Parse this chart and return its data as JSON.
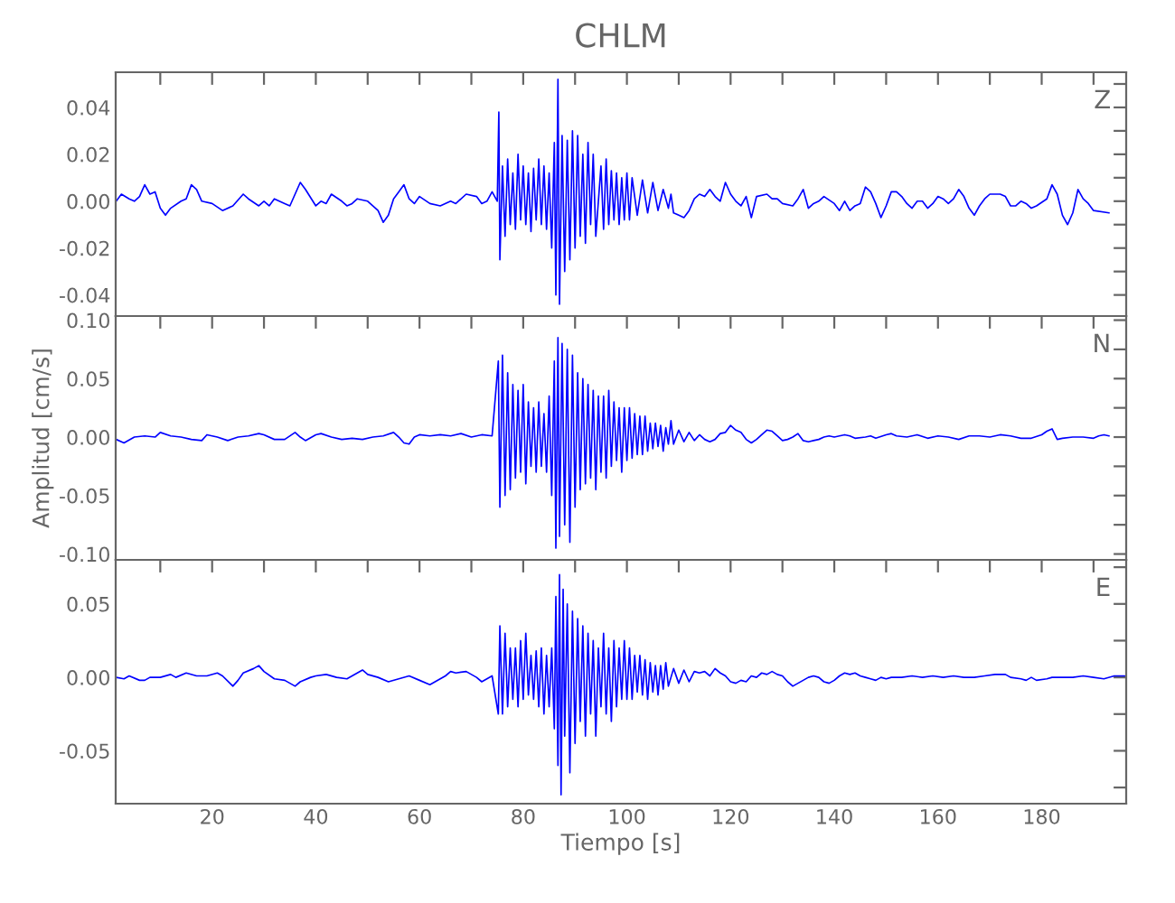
{
  "chart_data": [
    {
      "type": "line",
      "title": "CHLM",
      "annotations": [
        "Z"
      ],
      "tick_labels": "y",
      "xlim": [
        1.4,
        196.3
      ],
      "ylim": [
        -0.049,
        0.055
      ],
      "xticks": [
        {
          "value": 10,
          "label": null
        },
        {
          "value": 20,
          "label": null
        },
        {
          "value": 30,
          "label": null
        },
        {
          "value": 40,
          "label": null
        },
        {
          "value": 50,
          "label": null
        },
        {
          "value": 60,
          "label": null
        },
        {
          "value": 70,
          "label": null
        },
        {
          "value": 80,
          "label": null
        },
        {
          "value": 90,
          "label": null
        },
        {
          "value": 100,
          "label": null
        },
        {
          "value": 110,
          "label": null
        },
        {
          "value": 120,
          "label": null
        },
        {
          "value": 130,
          "label": null
        },
        {
          "value": 140,
          "label": null
        },
        {
          "value": 150,
          "label": null
        },
        {
          "value": 160,
          "label": null
        },
        {
          "value": 170,
          "label": null
        },
        {
          "value": 180,
          "label": null
        },
        {
          "value": 190,
          "label": null
        }
      ],
      "yticks": [
        {
          "value": -0.04,
          "label": "-0.04"
        },
        {
          "value": -0.03,
          "label": null
        },
        {
          "value": -0.02,
          "label": "-0.02"
        },
        {
          "value": -0.01,
          "label": null
        },
        {
          "value": 0.0,
          "label": "0.00"
        },
        {
          "value": 0.01,
          "label": null
        },
        {
          "value": 0.02,
          "label": "0.02"
        },
        {
          "value": 0.03,
          "label": null
        },
        {
          "value": 0.04,
          "label": "0.04"
        },
        {
          "value": 0.05,
          "label": null
        }
      ],
      "series": [
        {
          "color": "#0000ff",
          "x": [
            1.5,
            2.5,
            4,
            5,
            6,
            7,
            8,
            9,
            10,
            11,
            12,
            14,
            15,
            16,
            17,
            18,
            20,
            22,
            24,
            26,
            27,
            29,
            30,
            31,
            32,
            34,
            35,
            37,
            38,
            40,
            41,
            42,
            43,
            45,
            46,
            47,
            48,
            50,
            52,
            53,
            54,
            55,
            56,
            57,
            58,
            59,
            60,
            62,
            64,
            66,
            67,
            69,
            71,
            72,
            73,
            74,
            75,
            75.3,
            75.5,
            76,
            76.5,
            77,
            77.5,
            78,
            78.5,
            79,
            79.5,
            80,
            80.5,
            81,
            81.5,
            82,
            82.5,
            83,
            83.5,
            84,
            84.5,
            85,
            85.5,
            86,
            86.3,
            86.7,
            87,
            87.5,
            88,
            88.5,
            89,
            89.5,
            90,
            90.5,
            91,
            91.5,
            92,
            92.5,
            93,
            93.5,
            94,
            95,
            95.5,
            96,
            96.5,
            97,
            97.5,
            98,
            98.5,
            99,
            99.5,
            100,
            100.5,
            101,
            102,
            103,
            104,
            105,
            106,
            107,
            108,
            108.5,
            109,
            110,
            111,
            112,
            113,
            114,
            115,
            116,
            117,
            118,
            119,
            120,
            121,
            122,
            123,
            124,
            125,
            127,
            128,
            129,
            130,
            132,
            133,
            134,
            135,
            136,
            137,
            138,
            140,
            141,
            142,
            143,
            144,
            145,
            146,
            147,
            148,
            149,
            150,
            151,
            152,
            153,
            154,
            155,
            156,
            157,
            158,
            159,
            160,
            161,
            162,
            163,
            164,
            165,
            166,
            167,
            168,
            169,
            170,
            171,
            172,
            173,
            174,
            175,
            176,
            177,
            178,
            179,
            181,
            182,
            183,
            184,
            185,
            186,
            187,
            188,
            189,
            190,
            193
          ],
          "values": [
            0.0,
            0.003,
            0.001,
            0.0,
            0.002,
            0.007,
            0.003,
            0.004,
            -0.003,
            -0.006,
            -0.003,
            0.0,
            0.001,
            0.007,
            0.005,
            0.0,
            -0.001,
            -0.004,
            -0.002,
            0.003,
            0.001,
            -0.002,
            0.0,
            -0.002,
            0.001,
            -0.001,
            -0.002,
            0.008,
            0.005,
            -0.002,
            0.0,
            -0.001,
            0.003,
            0.0,
            -0.002,
            -0.001,
            0.001,
            0.0,
            -0.004,
            -0.009,
            -0.006,
            0.001,
            0.004,
            0.007,
            0.001,
            -0.001,
            0.002,
            -0.001,
            -0.002,
            0.0,
            -0.001,
            0.003,
            0.002,
            -0.001,
            0.0,
            0.004,
            0.0,
            0.038,
            -0.025,
            0.015,
            -0.015,
            0.018,
            -0.01,
            0.012,
            -0.012,
            0.02,
            -0.008,
            0.015,
            -0.01,
            0.012,
            -0.013,
            0.014,
            -0.008,
            0.018,
            -0.01,
            0.015,
            -0.012,
            0.012,
            -0.02,
            0.025,
            -0.04,
            0.052,
            -0.044,
            0.028,
            -0.03,
            0.026,
            -0.025,
            0.03,
            -0.02,
            0.028,
            -0.015,
            0.02,
            -0.018,
            0.025,
            -0.01,
            0.02,
            -0.015,
            0.015,
            -0.012,
            0.018,
            -0.01,
            0.013,
            -0.008,
            0.012,
            -0.01,
            0.01,
            -0.008,
            0.012,
            -0.008,
            0.01,
            -0.006,
            0.009,
            -0.005,
            0.008,
            -0.004,
            0.005,
            -0.003,
            0.003,
            -0.005,
            -0.006,
            -0.007,
            -0.004,
            0.001,
            0.003,
            0.002,
            0.005,
            0.002,
            0.0,
            0.008,
            0.003,
            0.0,
            -0.002,
            0.002,
            -0.007,
            0.002,
            0.003,
            0.001,
            0.001,
            -0.001,
            -0.002,
            0.001,
            0.005,
            -0.003,
            -0.001,
            0.0,
            0.002,
            -0.001,
            -0.004,
            0.0,
            -0.004,
            -0.002,
            -0.001,
            0.006,
            0.004,
            -0.001,
            -0.007,
            -0.002,
            0.004,
            0.004,
            0.002,
            -0.001,
            -0.003,
            0.0,
            0.0,
            -0.003,
            -0.001,
            0.002,
            0.001,
            -0.001,
            0.001,
            0.005,
            0.002,
            -0.003,
            -0.006,
            -0.002,
            0.001,
            0.003,
            0.003,
            0.003,
            0.002,
            -0.002,
            -0.002,
            0.0,
            -0.001,
            -0.003,
            -0.002,
            0.001,
            0.007,
            0.003,
            -0.006,
            -0.01,
            -0.005,
            0.005,
            0.001,
            -0.001,
            -0.004,
            -0.005
          ]
        }
      ]
    },
    {
      "type": "line",
      "ylabel": "Amplitud [cm/s]",
      "annotations": [
        "N"
      ],
      "tick_labels": "y",
      "xlim": [
        1.4,
        196.3
      ],
      "ylim": [
        -0.105,
        0.1035
      ],
      "xticks": [
        {
          "value": 10,
          "label": null
        },
        {
          "value": 20,
          "label": null
        },
        {
          "value": 30,
          "label": null
        },
        {
          "value": 40,
          "label": null
        },
        {
          "value": 50,
          "label": null
        },
        {
          "value": 60,
          "label": null
        },
        {
          "value": 70,
          "label": null
        },
        {
          "value": 80,
          "label": null
        },
        {
          "value": 90,
          "label": null
        },
        {
          "value": 100,
          "label": null
        },
        {
          "value": 110,
          "label": null
        },
        {
          "value": 120,
          "label": null
        },
        {
          "value": 130,
          "label": null
        },
        {
          "value": 140,
          "label": null
        },
        {
          "value": 150,
          "label": null
        },
        {
          "value": 160,
          "label": null
        },
        {
          "value": 170,
          "label": null
        },
        {
          "value": 180,
          "label": null
        },
        {
          "value": 190,
          "label": null
        }
      ],
      "yticks": [
        {
          "value": -0.1,
          "label": "-0.10"
        },
        {
          "value": -0.075,
          "label": null
        },
        {
          "value": -0.05,
          "label": "-0.05"
        },
        {
          "value": -0.025,
          "label": null
        },
        {
          "value": 0.0,
          "label": "0.00"
        },
        {
          "value": 0.025,
          "label": null
        },
        {
          "value": 0.05,
          "label": "0.05"
        },
        {
          "value": 0.075,
          "label": null
        },
        {
          "value": 0.1,
          "label": "0.10"
        }
      ],
      "series": [
        {
          "color": "#0000ff",
          "x": [
            1.5,
            3,
            5,
            7,
            9,
            10,
            12,
            14,
            16,
            18,
            19,
            21,
            23,
            25,
            27,
            29,
            30,
            32,
            34,
            36,
            37,
            38,
            40,
            41,
            43,
            45,
            47,
            49,
            51,
            53,
            55,
            56,
            57,
            58,
            59,
            60,
            62,
            64,
            66,
            68,
            70,
            72,
            74,
            75.2,
            75.5,
            76,
            76.5,
            77,
            77.5,
            78,
            78.5,
            79,
            79.5,
            80,
            80.5,
            81,
            81.5,
            82,
            82.5,
            83,
            83.5,
            84,
            84.5,
            85,
            85.5,
            86,
            86.3,
            86.7,
            87,
            87.5,
            88,
            88.5,
            89,
            89.5,
            90,
            90.5,
            91,
            91.5,
            92,
            92.5,
            93,
            93.5,
            94,
            94.5,
            95,
            95.5,
            96,
            96.5,
            97,
            97.5,
            98,
            98.5,
            99,
            99.5,
            100,
            100.5,
            101,
            101.5,
            102,
            102.5,
            103,
            103.5,
            104,
            104.5,
            105,
            105.5,
            106,
            106.5,
            107,
            107.5,
            108,
            108.5,
            109,
            110,
            111,
            112,
            113,
            114,
            115,
            116,
            117,
            118,
            119,
            120,
            121,
            122,
            123,
            124,
            125,
            126,
            127,
            128,
            129,
            130,
            131,
            132,
            133,
            134,
            135,
            136,
            137,
            138,
            139,
            140,
            142,
            143,
            144,
            146,
            147,
            148,
            150,
            151,
            152,
            154,
            156,
            158,
            160,
            162,
            164,
            166,
            168,
            170,
            172,
            174,
            176,
            178,
            180,
            181,
            182,
            183,
            184,
            186,
            188,
            190,
            191,
            192,
            193
          ],
          "values": [
            -0.002,
            -0.005,
            0.0,
            0.001,
            0.0,
            0.004,
            0.001,
            0.0,
            -0.002,
            -0.003,
            0.002,
            0.0,
            -0.003,
            0.0,
            0.001,
            0.003,
            0.002,
            -0.002,
            -0.002,
            0.004,
            0.0,
            -0.003,
            0.002,
            0.003,
            0.0,
            -0.002,
            -0.001,
            -0.002,
            0.0,
            0.001,
            0.004,
            0.0,
            -0.005,
            -0.006,
            0.0,
            0.002,
            0.001,
            0.002,
            0.001,
            0.003,
            0.0,
            0.002,
            0.001,
            0.065,
            -0.06,
            0.07,
            -0.05,
            0.055,
            -0.045,
            0.045,
            -0.035,
            0.04,
            -0.03,
            0.045,
            -0.04,
            0.03,
            -0.025,
            0.025,
            -0.03,
            0.03,
            -0.025,
            0.02,
            -0.03,
            0.035,
            -0.05,
            0.065,
            -0.095,
            0.085,
            -0.085,
            0.08,
            -0.075,
            0.075,
            -0.09,
            0.07,
            -0.06,
            0.055,
            -0.045,
            0.05,
            -0.04,
            0.045,
            -0.035,
            0.04,
            -0.045,
            0.035,
            -0.03,
            0.035,
            -0.035,
            0.04,
            -0.025,
            0.03,
            -0.02,
            0.025,
            -0.03,
            0.025,
            -0.02,
            0.025,
            -0.018,
            0.02,
            -0.015,
            0.018,
            -0.015,
            0.018,
            -0.012,
            0.012,
            -0.01,
            0.012,
            -0.008,
            0.01,
            -0.012,
            0.008,
            -0.006,
            0.014,
            -0.006,
            0.006,
            -0.004,
            0.004,
            -0.003,
            0.002,
            -0.002,
            -0.004,
            -0.002,
            0.003,
            0.004,
            0.01,
            0.006,
            0.004,
            -0.002,
            -0.005,
            -0.002,
            0.002,
            0.006,
            0.005,
            0.001,
            -0.003,
            -0.002,
            0.0,
            0.003,
            -0.003,
            -0.004,
            -0.003,
            -0.002,
            0.0,
            0.001,
            0.0,
            0.002,
            0.001,
            -0.001,
            0.0,
            0.001,
            -0.001,
            0.002,
            0.003,
            0.001,
            0.0,
            0.002,
            -0.001,
            0.001,
            0.0,
            -0.002,
            0.001,
            0.001,
            0.0,
            0.002,
            0.001,
            -0.001,
            -0.001,
            0.002,
            0.005,
            0.007,
            -0.002,
            -0.001,
            0.0,
            0.0,
            -0.001,
            0.001,
            0.002,
            0.001
          ]
        }
      ]
    },
    {
      "type": "line",
      "xlabel": "Tiempo [s]",
      "annotations": [
        "E"
      ],
      "xlim": [
        1.4,
        196.3
      ],
      "ylim": [
        -0.086,
        0.08
      ],
      "xticks": [
        {
          "value": 10,
          "label": null
        },
        {
          "value": 20,
          "label": "20"
        },
        {
          "value": 30,
          "label": null
        },
        {
          "value": 40,
          "label": "40"
        },
        {
          "value": 50,
          "label": null
        },
        {
          "value": 60,
          "label": "60"
        },
        {
          "value": 70,
          "label": null
        },
        {
          "value": 80,
          "label": "80"
        },
        {
          "value": 90,
          "label": null
        },
        {
          "value": 100,
          "label": "100"
        },
        {
          "value": 110,
          "label": null
        },
        {
          "value": 120,
          "label": "120"
        },
        {
          "value": 130,
          "label": null
        },
        {
          "value": 140,
          "label": "140"
        },
        {
          "value": 150,
          "label": null
        },
        {
          "value": 160,
          "label": "160"
        },
        {
          "value": 170,
          "label": null
        },
        {
          "value": 180,
          "label": "180"
        },
        {
          "value": 190,
          "label": null
        }
      ],
      "yticks": [
        {
          "value": -0.075,
          "label": null
        },
        {
          "value": -0.05,
          "label": "-0.05"
        },
        {
          "value": -0.025,
          "label": null
        },
        {
          "value": 0.0,
          "label": "0.00"
        },
        {
          "value": 0.025,
          "label": null
        },
        {
          "value": 0.05,
          "label": "0.05"
        },
        {
          "value": 0.075,
          "label": null
        }
      ],
      "series": [
        {
          "color": "#0000ff",
          "x": [
            1.5,
            3,
            4,
            6,
            7,
            8,
            10,
            12,
            13,
            15,
            17,
            19,
            21,
            22,
            24,
            25,
            26,
            28,
            29,
            30,
            32,
            34,
            36,
            37,
            39,
            40,
            42,
            44,
            46,
            48,
            49,
            50,
            52,
            54,
            56,
            58,
            60,
            62,
            63,
            65,
            66,
            67,
            69,
            71,
            72,
            73,
            74,
            75.2,
            75.5,
            76,
            76.5,
            77,
            77.5,
            78,
            78.5,
            79,
            79.5,
            80,
            80.5,
            81,
            81.5,
            82,
            82.5,
            83,
            83.5,
            84,
            84.5,
            85,
            85.5,
            86,
            86.3,
            86.7,
            87,
            87.3,
            87.7,
            88,
            88.5,
            89,
            89.5,
            90,
            90.5,
            91,
            91.5,
            92,
            92.5,
            93,
            93.5,
            94,
            94.5,
            95,
            95.5,
            96,
            96.5,
            97,
            97.5,
            98,
            98.5,
            99,
            99.5,
            100,
            100.5,
            101,
            101.5,
            102,
            102.5,
            103,
            103.5,
            104,
            104.5,
            105,
            105.5,
            106,
            106.5,
            107,
            107.5,
            108,
            109,
            110,
            111,
            112,
            113,
            114,
            115,
            116,
            117,
            118,
            119,
            120,
            121,
            122,
            123,
            124,
            125,
            126,
            127,
            128,
            129,
            130,
            131,
            132,
            133,
            134,
            135,
            136,
            137,
            138,
            139,
            140,
            141,
            142,
            143,
            144,
            145,
            146,
            147,
            148,
            149,
            150,
            151,
            153,
            155,
            157,
            159,
            161,
            163,
            165,
            167,
            169,
            171,
            173,
            174,
            176,
            177,
            178,
            179,
            181,
            182,
            184,
            186,
            188,
            190,
            192,
            194,
            196
          ],
          "values": [
            0.0,
            -0.001,
            0.001,
            -0.002,
            -0.002,
            0.0,
            0.0,
            0.002,
            0.0,
            0.003,
            0.001,
            0.001,
            0.003,
            0.001,
            -0.006,
            -0.002,
            0.003,
            0.006,
            0.008,
            0.004,
            -0.001,
            -0.002,
            -0.006,
            -0.003,
            0.0,
            0.001,
            0.002,
            0.0,
            -0.001,
            0.003,
            0.005,
            0.002,
            0.0,
            -0.003,
            -0.001,
            0.001,
            -0.002,
            -0.005,
            -0.003,
            0.001,
            0.004,
            0.003,
            0.004,
            0.0,
            -0.003,
            -0.001,
            0.001,
            -0.025,
            0.035,
            -0.025,
            0.03,
            -0.02,
            0.02,
            -0.015,
            0.02,
            -0.02,
            0.025,
            -0.015,
            0.03,
            -0.012,
            0.015,
            -0.015,
            0.018,
            -0.02,
            0.02,
            -0.025,
            0.015,
            -0.02,
            0.02,
            -0.035,
            0.055,
            -0.06,
            0.07,
            -0.08,
            0.06,
            -0.04,
            0.05,
            -0.065,
            0.045,
            -0.045,
            0.04,
            -0.03,
            0.035,
            -0.04,
            0.03,
            -0.025,
            0.025,
            -0.04,
            0.02,
            -0.02,
            0.03,
            -0.025,
            0.02,
            -0.03,
            0.025,
            -0.02,
            0.02,
            -0.015,
            0.025,
            -0.015,
            0.02,
            -0.015,
            0.015,
            -0.01,
            0.015,
            -0.012,
            0.012,
            -0.015,
            0.01,
            -0.01,
            0.008,
            -0.012,
            0.008,
            -0.008,
            0.01,
            -0.006,
            0.006,
            -0.004,
            0.005,
            -0.003,
            0.004,
            0.003,
            0.004,
            0.001,
            0.006,
            0.003,
            0.001,
            -0.003,
            -0.004,
            -0.002,
            -0.003,
            0.001,
            0.0,
            0.003,
            0.002,
            0.004,
            0.002,
            0.001,
            -0.003,
            -0.006,
            -0.004,
            -0.002,
            0.0,
            0.001,
            0.0,
            -0.003,
            -0.004,
            -0.002,
            0.001,
            0.003,
            0.002,
            0.003,
            0.001,
            0.0,
            -0.001,
            -0.002,
            0.0,
            -0.001,
            0.0,
            0.0,
            0.001,
            0.0,
            0.001,
            0.0,
            0.001,
            0.0,
            0.0,
            0.001,
            0.002,
            0.002,
            0.0,
            -0.001,
            -0.002,
            0.0,
            -0.002,
            -0.001,
            0.0,
            0.0,
            0.0,
            0.001,
            0.0,
            -0.001,
            0.001,
            0.001
          ]
        }
      ]
    }
  ]
}
